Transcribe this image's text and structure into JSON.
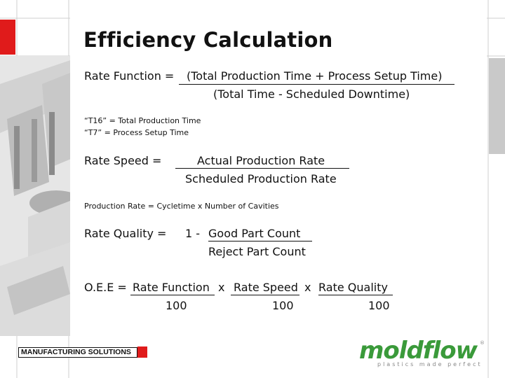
{
  "slide": {
    "title": "Efficiency Calculation"
  },
  "rate_function": {
    "label": "Rate Function =",
    "numerator": "(Total Production Time + Process Setup Time)",
    "denominator": "(Total Time - Scheduled Downtime)"
  },
  "notes": {
    "t16": "“T16” = Total Production Time",
    "t7": "“T7” = Process Setup Time"
  },
  "rate_speed": {
    "label": "Rate Speed =",
    "numerator": "Actual Production Rate",
    "denominator": "Scheduled Production Rate"
  },
  "production_rate_note": "Production Rate = Cycletime x Number of Cavities",
  "rate_quality": {
    "label": "Rate Quality =",
    "prefix": "1 -",
    "numerator": "Good Part Count",
    "denominator": "Reject Part Count"
  },
  "oee": {
    "label": "O.E.E =",
    "term1": "Rate Function",
    "term2": "Rate Speed",
    "term3": "Rate Quality",
    "times": "x",
    "den1": "100",
    "den2": "100",
    "den3": "100"
  },
  "footer": {
    "label": "MANUFACTURING SOLUTIONS"
  },
  "logo": {
    "name": "moldflow",
    "tagline": "plastics made perfect",
    "registered": "®"
  },
  "colors": {
    "accent_red": "#e01b1b",
    "logo_green": "#3a9a3a",
    "grid_grey": "#c9c9c9"
  }
}
